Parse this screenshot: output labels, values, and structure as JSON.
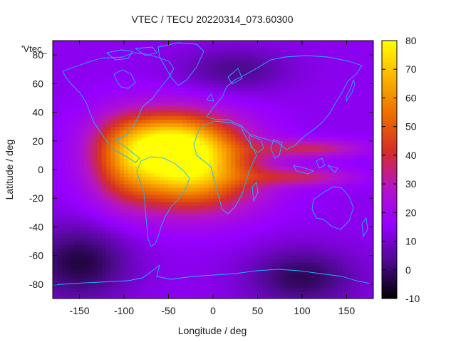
{
  "chart_data": {
    "type": "heatmap",
    "title": "VTEC / TECU 20220314_073.60300",
    "xlabel": "Longitude / deg",
    "ylabel": "Latitude / deg",
    "key_label": "'Vtec_",
    "xlim": [
      -180,
      180
    ],
    "ylim": [
      -90,
      90
    ],
    "x_ticks": [
      -150,
      -100,
      -50,
      0,
      50,
      100,
      150
    ],
    "y_ticks": [
      -80,
      -60,
      -40,
      -20,
      0,
      20,
      40,
      60,
      80
    ],
    "colorbar": {
      "min": -10,
      "max": 80,
      "ticks": [
        -10,
        0,
        10,
        20,
        30,
        40,
        50,
        60,
        70,
        80
      ],
      "palette": [
        "#000000",
        "#4b0a8c",
        "#9600ff",
        "#b414c8",
        "#d42e28",
        "#ec6e00",
        "#fbb400",
        "#ffff00"
      ]
    },
    "grid": false,
    "vtec_field": {
      "background_tecu": 14,
      "dark_regions": [
        {
          "lon": -150,
          "lat": -65,
          "tecu": -4,
          "lon_radius": 55,
          "lat_radius": 25
        },
        {
          "lon": 100,
          "lat": -75,
          "tecu": -2,
          "lon_radius": 60,
          "lat_radius": 20
        },
        {
          "lon": 25,
          "lat": 70,
          "tecu": 3,
          "lon_radius": 60,
          "lat_radius": 15
        }
      ],
      "anomaly_crests": [
        {
          "lon": -45,
          "lat": 20,
          "tecu": 55,
          "lon_radius": 70,
          "lat_radius": 22
        },
        {
          "lon": -25,
          "lat": -5,
          "tecu": 50,
          "lon_radius": 75,
          "lat_radius": 25
        },
        {
          "lon": -100,
          "lat": 5,
          "tecu": 20,
          "lon_radius": 40,
          "lat_radius": 30
        },
        {
          "lon": 110,
          "lat": 15,
          "tecu": 22,
          "lon_radius": 60,
          "lat_radius": 6
        },
        {
          "lon": 100,
          "lat": -5,
          "tecu": 20,
          "lon_radius": 60,
          "lat_radius": 6
        }
      ]
    }
  }
}
